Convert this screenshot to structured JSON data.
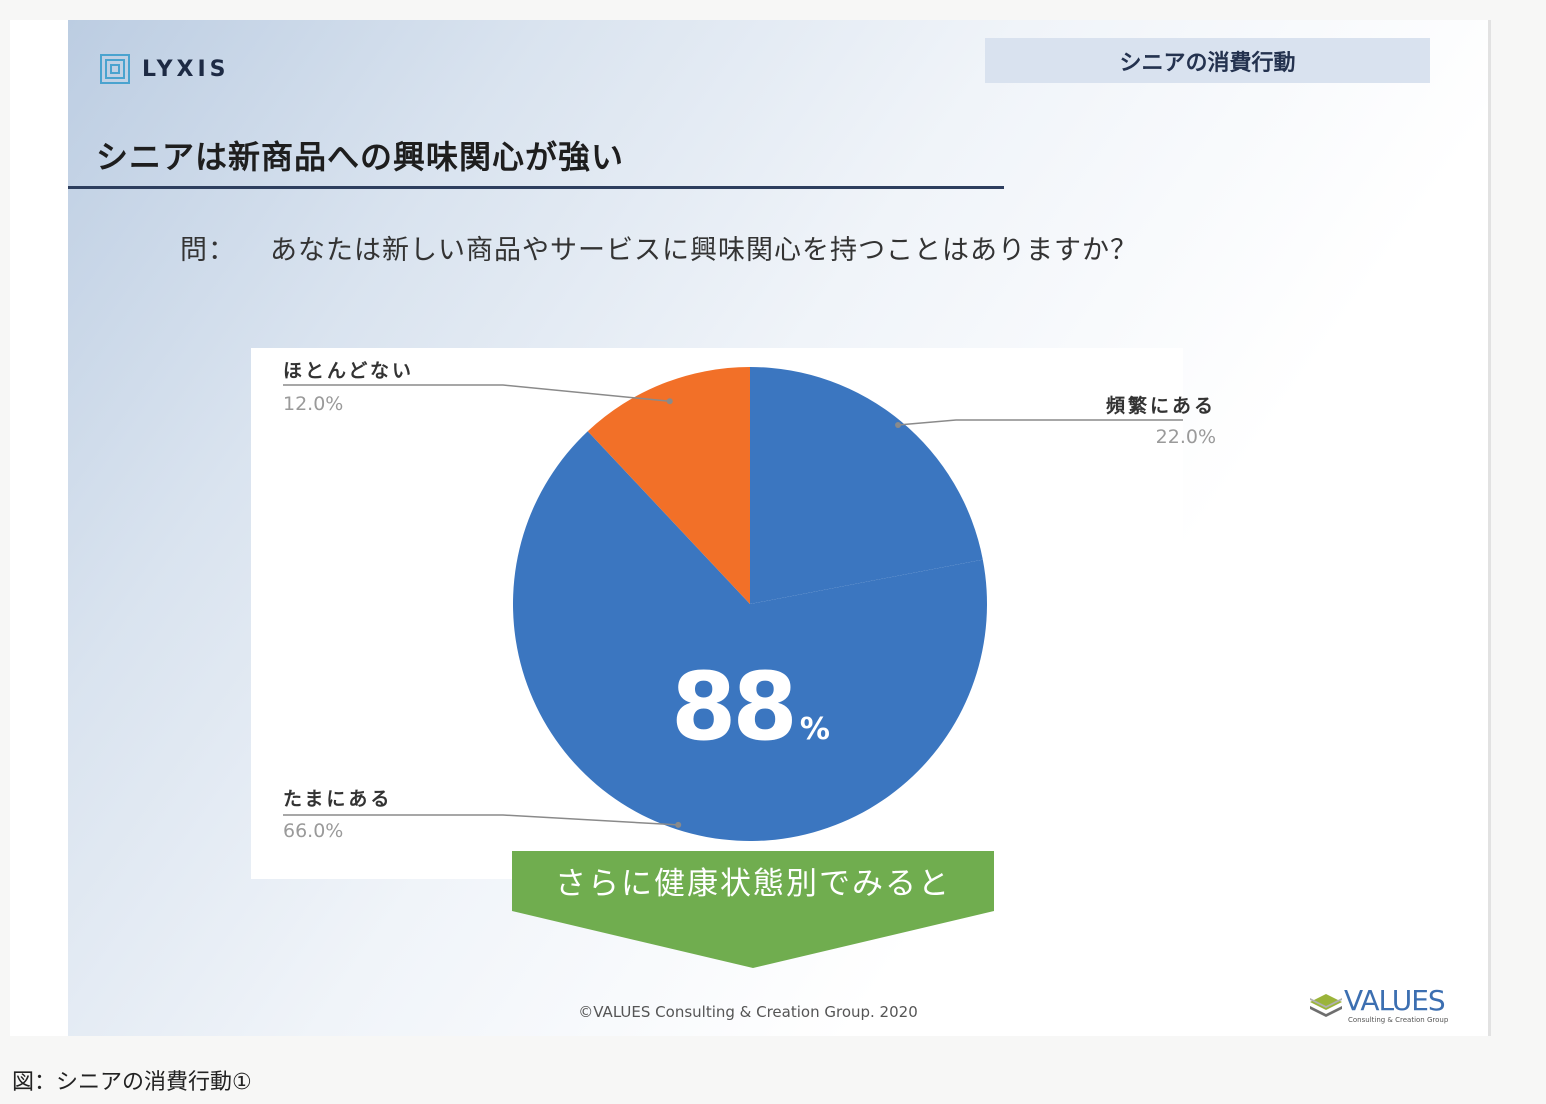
{
  "header": {
    "logo_text": "LYXIS",
    "section_tag": "シニアの消費行動"
  },
  "page_title": "シニアは新商品への興味関心が強い",
  "question": {
    "label": "問：",
    "text": "あなたは新しい商品やサービスに興味関心を持つことはありますか？"
  },
  "chart_data": {
    "type": "pie",
    "slices": [
      {
        "label": "頻繁にある",
        "value": 22.0,
        "display": "22.0%",
        "color": "#3b76c0"
      },
      {
        "label": "たまにある",
        "value": 66.0,
        "display": "66.0%",
        "color": "#3b76c0"
      },
      {
        "label": "ほとんどない",
        "value": 12.0,
        "display": "12.0%",
        "color": "#f27028"
      }
    ],
    "start_angle_deg": 0,
    "direction": "clockwise",
    "highlight": {
      "number": "88",
      "unit": "%"
    }
  },
  "callout": {
    "text": "さらに健康状態別でみると",
    "color": "#70ad4f"
  },
  "footer": {
    "copyright": "©VALUES Consulting & Creation Group.  2020",
    "values_logo_text": "VALUES",
    "values_logo_sub": "Consulting & Creation Group"
  },
  "caption": "図：シニアの消費行動①"
}
